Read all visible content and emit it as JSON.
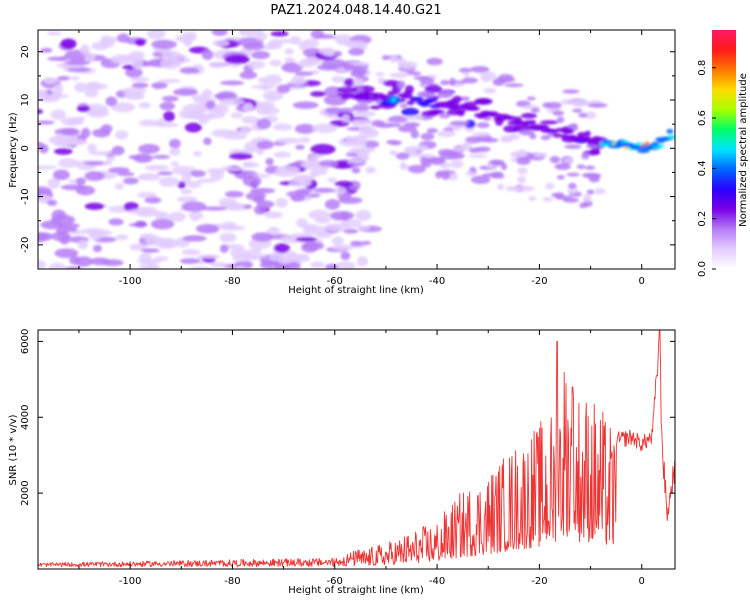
{
  "figure_title": "PAZ1.2024.048.14.40.G21",
  "chart_data": [
    {
      "type": "heatmap",
      "xlabel": "Height of straight line (km)",
      "ylabel": "Frequency (Hz)",
      "xlim": [
        -118,
        6.5
      ],
      "ylim": [
        -25,
        24.5
      ],
      "xticks": [
        -100,
        -80,
        -60,
        -40,
        -20,
        0
      ],
      "yticks": [
        -20,
        -10,
        0,
        10,
        20
      ],
      "colorbar": {
        "label": "Normalized spectral amplitude",
        "range": [
          0,
          0.95
        ],
        "ticks": [
          0.0,
          0.2,
          0.4,
          0.6,
          0.8
        ],
        "colormap": "rainbow (white-lavender-purple-blue-cyan-green-yellow-orange-red-magenta)",
        "colors": [
          "#ffffff",
          "#e3ccff",
          "#b57cf7",
          "#7a00e6",
          "#2a00ff",
          "#0066ff",
          "#00e5ff",
          "#00ff66",
          "#aaff00",
          "#ffdd00",
          "#ff7700",
          "#ff1a1a",
          "#ff1a66"
        ]
      },
      "ridge": {
        "description": "main signal ridge in km (x) and Hz (y)",
        "points": [
          [
            -55,
            10
          ],
          [
            -50,
            11
          ],
          [
            -45,
            10
          ],
          [
            -38,
            9
          ],
          [
            -30,
            7
          ],
          [
            -25,
            6
          ],
          [
            -20,
            4
          ],
          [
            -15,
            3
          ],
          [
            -10,
            2
          ],
          [
            -5,
            1
          ],
          [
            0,
            0
          ],
          [
            3,
            1
          ],
          [
            6,
            3
          ]
        ],
        "peak": {
          "x": 0,
          "y": 0.5,
          "value": 0.95
        }
      },
      "noise_cutoff_x": -55
    },
    {
      "type": "line",
      "xlabel": "Height of straight line (km)",
      "ylabel": "SNR (10 * v/v)",
      "xlim": [
        -118,
        6.5
      ],
      "ylim": [
        0,
        6300
      ],
      "xticks": [
        -100,
        -80,
        -60,
        -40,
        -20,
        0
      ],
      "yticks": [
        2000,
        4000,
        6000
      ],
      "color": "#ee3333",
      "envelope": {
        "x": [
          -118,
          -60,
          -55,
          -50,
          -45,
          -40,
          -35,
          -30,
          -25,
          -20,
          -17,
          -15,
          -13,
          -10,
          -8,
          -5,
          -2,
          0,
          2,
          3,
          3.5,
          4,
          5,
          6.5
        ],
        "y": [
          120,
          250,
          500,
          700,
          1000,
          1300,
          2100,
          2600,
          3300,
          3900,
          4300,
          6000,
          4800,
          4700,
          4300,
          3600,
          3700,
          3500,
          3700,
          5500,
          6300,
          3200,
          1400,
          2800
        ]
      },
      "peaks": [
        {
          "x": -16.5,
          "y": 6000
        },
        {
          "x": -13.5,
          "y": 4800
        },
        {
          "x": 3.5,
          "y": 6300
        }
      ]
    }
  ]
}
